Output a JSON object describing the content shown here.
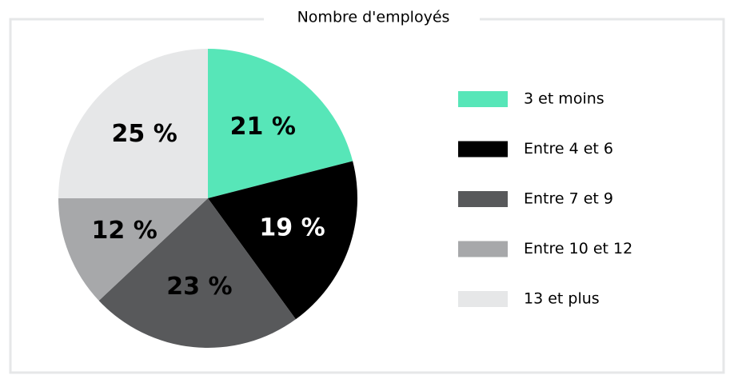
{
  "chart_data": {
    "type": "pie",
    "title": "Nombre d'employés",
    "categories": [
      "3 et moins",
      "Entre 4 et 6",
      "Entre 7 et 9",
      "Entre 10 et 12",
      "13 et plus"
    ],
    "values": [
      21,
      19,
      23,
      12,
      25
    ],
    "value_labels": [
      "21 %",
      "19 %",
      "23 %",
      "12 %",
      "25 %"
    ],
    "colors": [
      "#57e6b8",
      "#000000",
      "#58595b",
      "#a7a8aa",
      "#e6e7e8"
    ],
    "legend": "right"
  }
}
